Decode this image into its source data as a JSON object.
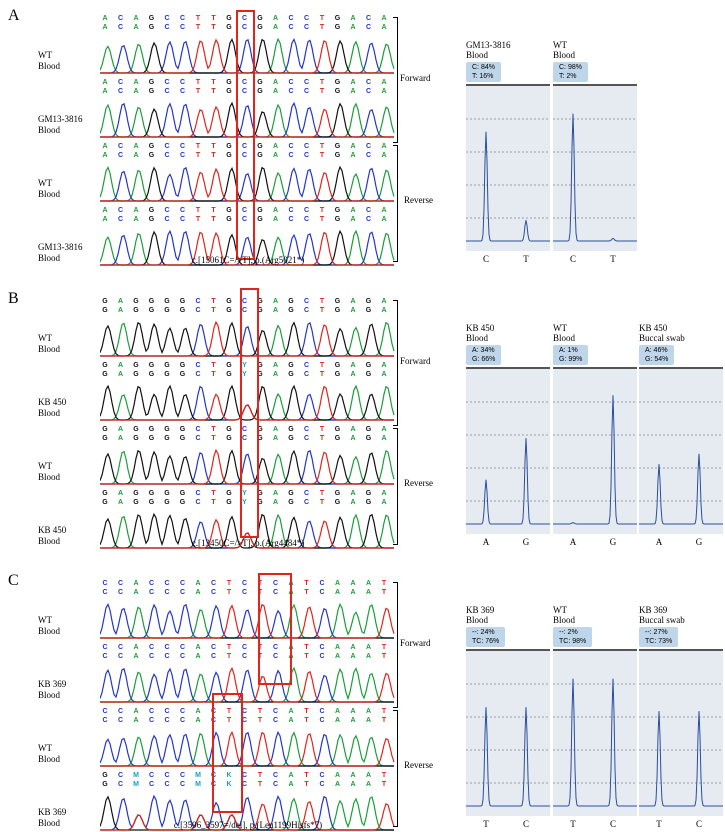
{
  "panels": [
    {
      "letter": "A",
      "top": 0,
      "rows": [
        {
          "label": [
            "WT",
            "Blood"
          ],
          "seq": "ACAGCCTTGCGACCTGACA"
        },
        {
          "label": [
            "GM13-3816",
            "Blood"
          ],
          "seq": "ACAGCCTTGCGACCTGACA"
        },
        {
          "label": [
            "WT",
            "Blood"
          ],
          "seq": "ACAGCCTTGCGACCTGACA"
        },
        {
          "label": [
            "GM13-3816",
            "Blood"
          ],
          "seq": "ACAGCCTTGCGACCTGACA"
        }
      ],
      "forward": "Forward",
      "reverse": "Reverse",
      "caption": "c.[15061C=/>T], p.(Arg5021*)",
      "quant": [
        {
          "name": [
            "GM13-3816",
            "Blood"
          ],
          "box": [
            "C: 84%",
            "T: 16%"
          ],
          "peaks": [
            0.84,
            0.16
          ],
          "x": [
            "C",
            "T"
          ]
        },
        {
          "name": [
            "WT",
            "Blood"
          ],
          "box": [
            "C: 98%",
            "T: 2%"
          ],
          "peaks": [
            0.98,
            0.02
          ],
          "x": [
            "C",
            "T"
          ]
        }
      ]
    },
    {
      "letter": "B",
      "top": 0,
      "rows": [
        {
          "label": [
            "WT",
            "Blood"
          ],
          "seq": "GAGGGGCTGCGAGCTGAGA"
        },
        {
          "label": [
            "KB 450",
            "Blood"
          ],
          "seq": "GAGGGGCTGYGAGCTGAGA"
        },
        {
          "label": [
            "WT",
            "Blood"
          ],
          "seq": "GAGGGGCTGCGAGCTGAGA"
        },
        {
          "label": [
            "KB 450",
            "Blood"
          ],
          "seq": "GAGGGGCTGYGAGCTGAGA"
        }
      ],
      "forward": "Forward",
      "reverse": "Reverse",
      "caption": "c.[13450C=/>T], p.(Arg4484*)",
      "quant": [
        {
          "name": [
            "KB 450",
            "Blood"
          ],
          "box": [
            "A: 34%",
            "G: 66%"
          ],
          "peaks": [
            0.34,
            0.66
          ],
          "x": [
            "A",
            "G"
          ]
        },
        {
          "name": [
            "WT",
            "Blood"
          ],
          "box": [
            "A: 1%",
            "G: 99%"
          ],
          "peaks": [
            0.01,
            0.99
          ],
          "x": [
            "A",
            "G"
          ]
        },
        {
          "name": [
            "KB 450",
            "Buccal swab"
          ],
          "box": [
            "A: 46%",
            "G: 54%"
          ],
          "peaks": [
            0.46,
            0.54
          ],
          "x": [
            "A",
            "G"
          ]
        }
      ]
    },
    {
      "letter": "C",
      "top": 0,
      "rows": [
        {
          "label": [
            "WT",
            "Blood"
          ],
          "seq": "CCACCCACTCTCATCAAAT"
        },
        {
          "label": [
            "KB 369",
            "Blood"
          ],
          "seq": "CCACCCACTCTCATCAAAT"
        },
        {
          "label": [
            "WT",
            "Blood"
          ],
          "seq": "CCACCCACTCTCATCAAAT"
        },
        {
          "label": [
            "KB 369",
            "Blood"
          ],
          "seq": "GCMCCCMCKCTCATCAAAT"
        }
      ],
      "forward": "Forward",
      "reverse": "Reverse",
      "caption": "c.[3596_3597=/del], p.(Leu1199Hisfs*7)",
      "quant": [
        {
          "name": [
            "KB 369",
            "Blood"
          ],
          "box": [
            "--: 24%",
            "TC: 76%"
          ],
          "peaks": [
            0.76,
            0.76
          ],
          "x": [
            "T",
            "C"
          ]
        },
        {
          "name": [
            "WT",
            "Blood"
          ],
          "box": [
            "--: 2%",
            "TC: 98%"
          ],
          "peaks": [
            0.98,
            0.98
          ],
          "x": [
            "T",
            "C"
          ]
        },
        {
          "name": [
            "KB 369",
            "Buccal swab"
          ],
          "box": [
            "--: 27%",
            "TC: 73%"
          ],
          "peaks": [
            0.73,
            0.73
          ],
          "x": [
            "T",
            "C"
          ]
        }
      ]
    }
  ],
  "colors": {
    "A": "#1a9e3a",
    "C": "#2436c8",
    "G": "#111111",
    "T": "#e0241b",
    "N": "#18a0c8",
    "trace_blue": "#2a4fa0",
    "highlight": "#e1251b"
  }
}
